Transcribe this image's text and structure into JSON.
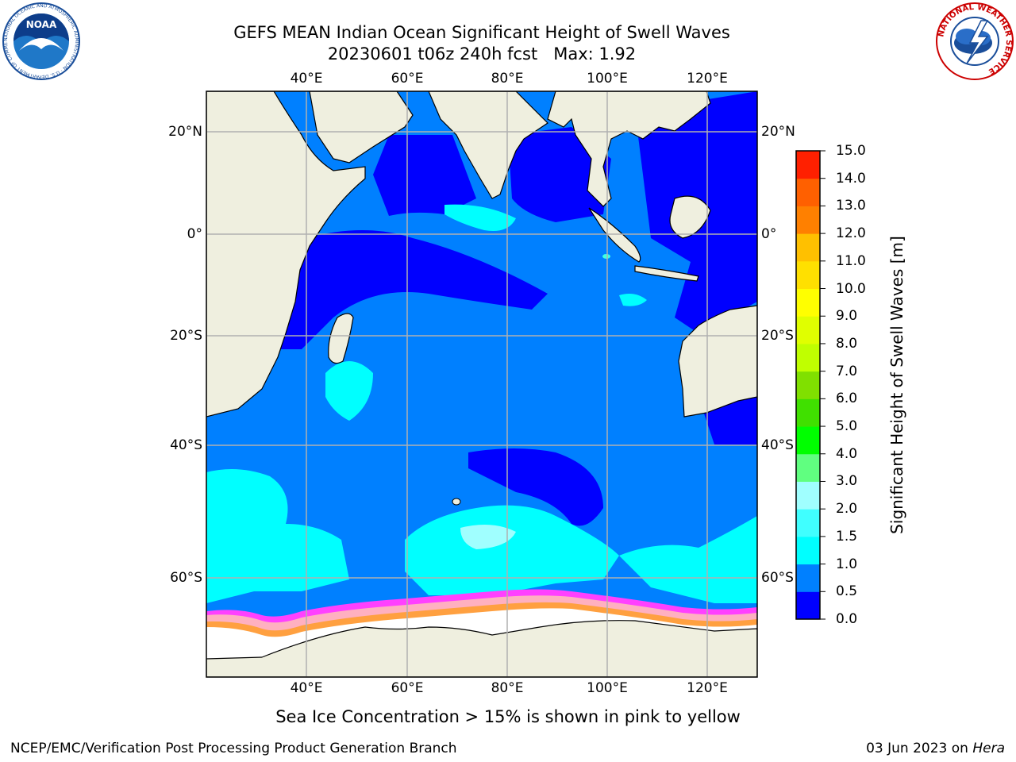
{
  "title": {
    "line1": "GEFS MEAN Indian Ocean Significant Height of Swell Waves",
    "line2": "20230601 t06z 240h fcst   Max: 1.92"
  },
  "map": {
    "lon_labels": [
      "40°E",
      "60°E",
      "80°E",
      "100°E",
      "120°E"
    ],
    "lat_labels": [
      "20°N",
      "0°",
      "20°S",
      "40°S",
      "60°S"
    ],
    "ocean_colors": {
      "band_0_0.5": "#0000ff",
      "band_0.5_1.0": "#0080ff",
      "band_1.0_1.5": "#00ffff",
      "band_1.5_2.0": "#40ffe0",
      "band_2.0_3.0": "#b0ffff"
    },
    "land_color": "#efefdf",
    "ice_colors": [
      "#ff40ff",
      "#ffc0e0",
      "#ffa040",
      "#ffd060",
      "#ffffff"
    ],
    "grid": true
  },
  "colorbar": {
    "label": "Significant Height of Swell Waves [m]",
    "ticks": [
      "0.0",
      "0.5",
      "1.0",
      "1.5",
      "2.0",
      "3.0",
      "4.0",
      "5.0",
      "6.0",
      "7.0",
      "8.0",
      "9.0",
      "10.0",
      "11.0",
      "12.0",
      "13.0",
      "14.0",
      "15.0"
    ],
    "colors": [
      "#0000ff",
      "#0080ff",
      "#00ffff",
      "#40ffff",
      "#a0ffff",
      "#60ff80",
      "#00ff00",
      "#40e000",
      "#80e000",
      "#c0ff00",
      "#e0ff00",
      "#ffff00",
      "#ffe000",
      "#ffc000",
      "#ff8000",
      "#ff6000",
      "#ff2000"
    ]
  },
  "ice_note": "Sea Ice Concentration > 15% is shown in pink to yellow",
  "footer": {
    "left": "NCEP/EMC/Verification Post Processing Product Generation Branch",
    "right_prefix": "03 Jun 2023 on ",
    "right_machine": "Hera"
  },
  "logos": {
    "noaa": {
      "text": "NOAA",
      "ring": "NATIONAL OCEANIC AND ATMOSPHERIC ADMINISTRATION · U.S. DEPARTMENT OF COMMERCE"
    },
    "nws": {
      "ring": "NATIONAL WEATHER SERVICE"
    }
  }
}
